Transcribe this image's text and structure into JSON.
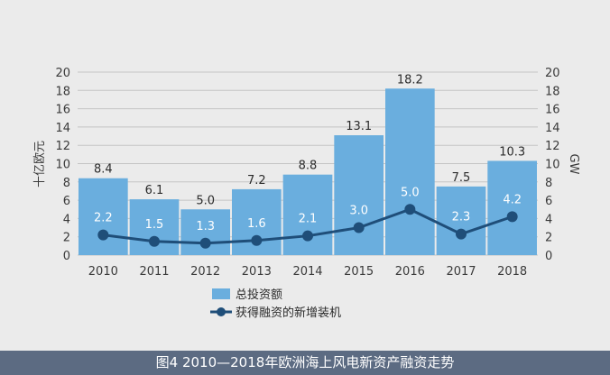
{
  "chart_data": {
    "type": "bar",
    "categories": [
      "2010",
      "2011",
      "2012",
      "2013",
      "2014",
      "2015",
      "2016",
      "2017",
      "2018"
    ],
    "series": [
      {
        "name": "总投资额",
        "type": "bar",
        "axis": "left",
        "values": [
          8.4,
          6.1,
          5.0,
          7.2,
          8.8,
          13.1,
          18.2,
          7.5,
          10.3
        ]
      },
      {
        "name": "获得融资的新增装机",
        "type": "line",
        "axis": "right",
        "values": [
          2.2,
          1.5,
          1.3,
          1.6,
          2.1,
          3.0,
          5.0,
          2.3,
          4.2
        ]
      }
    ],
    "ylabel": "十亿欧元",
    "y2label": "GW",
    "ylim": [
      0,
      20
    ],
    "y2lim": [
      0,
      20
    ],
    "yticks": [
      0,
      2,
      4,
      6,
      8,
      10,
      12,
      14,
      16,
      18,
      20
    ],
    "grid": true,
    "legend": "bottom-left",
    "colors": {
      "bar": "#6aaede",
      "line": "#1f4e79",
      "grid": "#c4c4c4"
    }
  },
  "caption": "图4 2010—2018年欧洲海上风电新资产融资走势"
}
